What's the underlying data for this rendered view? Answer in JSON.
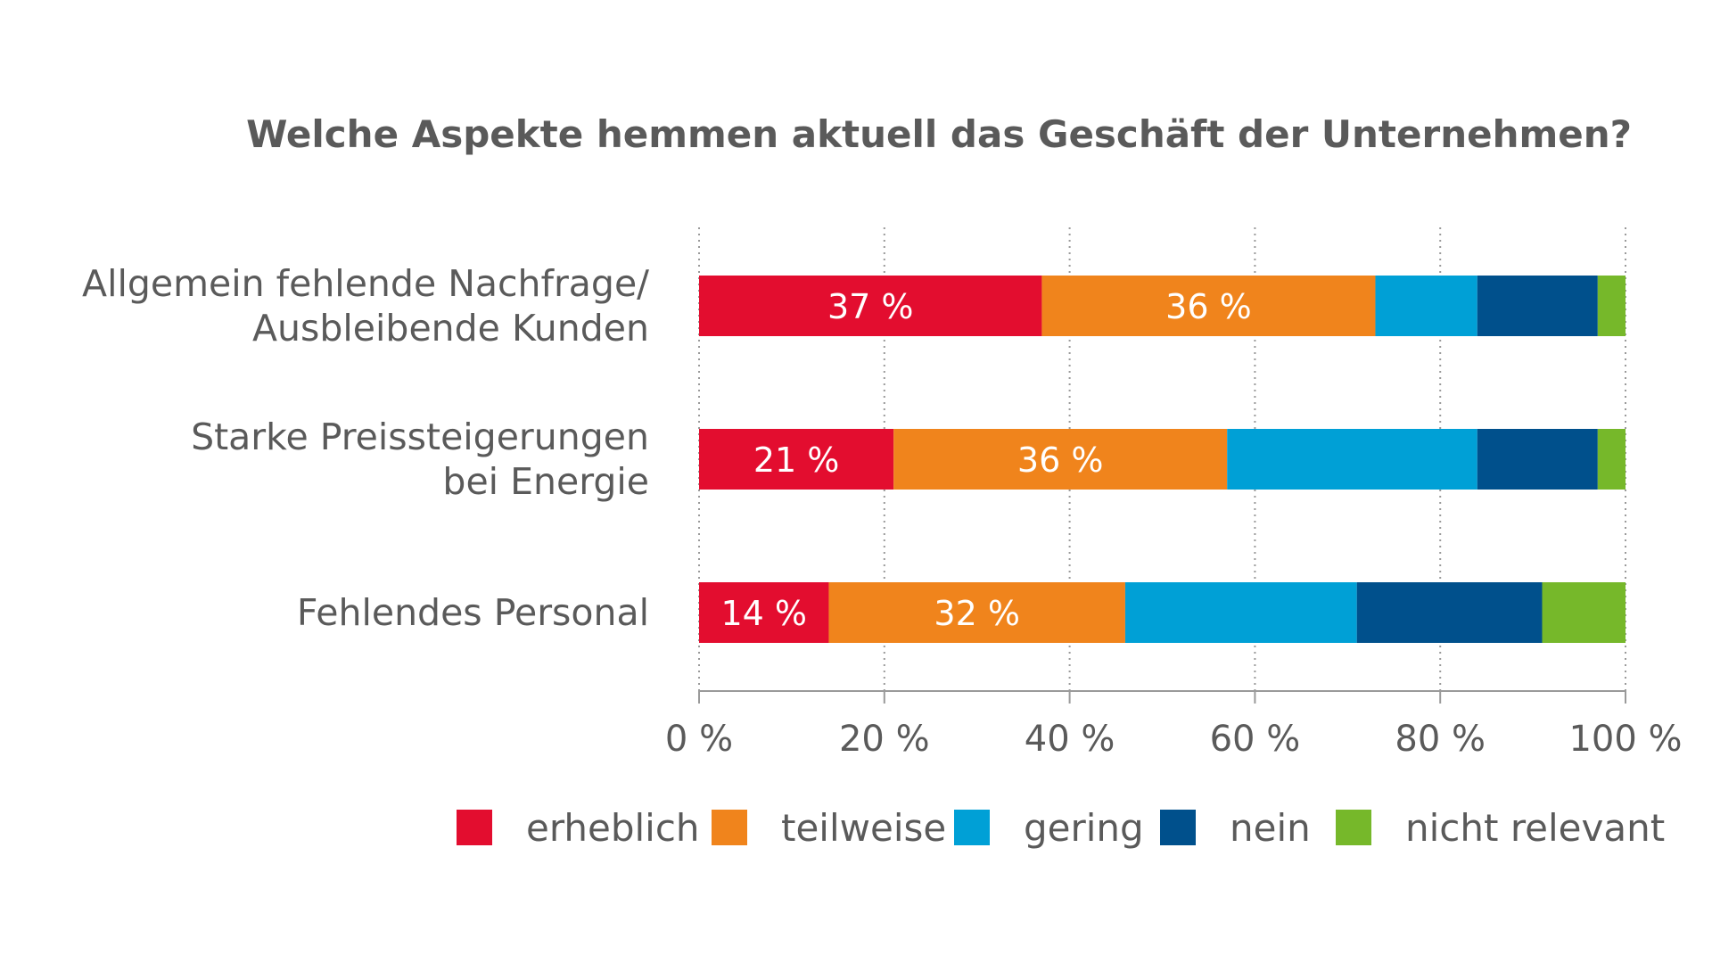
{
  "chart_data": {
    "type": "bar",
    "orientation": "horizontal",
    "stacked": true,
    "title": "Welche Aspekte hemmen aktuell das Geschäft der Unternehmen?",
    "categories": [
      [
        "Allgemein fehlende Nachfrage/",
        "Ausbleibende Kunden"
      ],
      [
        "Starke Preissteigerungen",
        "bei Energie"
      ],
      [
        "Fehlendes Personal"
      ]
    ],
    "series": [
      {
        "name": "erheblich",
        "color": "#e30d2f",
        "values": [
          37,
          21,
          14
        ],
        "labels": [
          "37 %",
          "21 %",
          "14 %"
        ]
      },
      {
        "name": "teilweise",
        "color": "#f0841c",
        "values": [
          36,
          36,
          32
        ],
        "labels": [
          "36 %",
          "36 %",
          "32 %"
        ]
      },
      {
        "name": "gering",
        "color": "#00a0d6",
        "values": [
          11,
          27,
          25
        ],
        "labels": [
          "",
          "",
          ""
        ]
      },
      {
        "name": "nein",
        "color": "#00508c",
        "values": [
          13,
          13,
          20
        ],
        "labels": [
          "",
          "",
          ""
        ]
      },
      {
        "name": "nicht relevant",
        "color": "#76b82a",
        "values": [
          3,
          3,
          9
        ],
        "labels": [
          "",
          "",
          ""
        ]
      }
    ],
    "xlim": [
      0,
      100
    ],
    "xticks": [
      0,
      20,
      40,
      60,
      80,
      100
    ],
    "xtick_labels": [
      "0 %",
      "20 %",
      "40 %",
      "60 %",
      "80 %",
      "100 %"
    ],
    "grid": "vertical dotted",
    "legend_position": "bottom"
  }
}
